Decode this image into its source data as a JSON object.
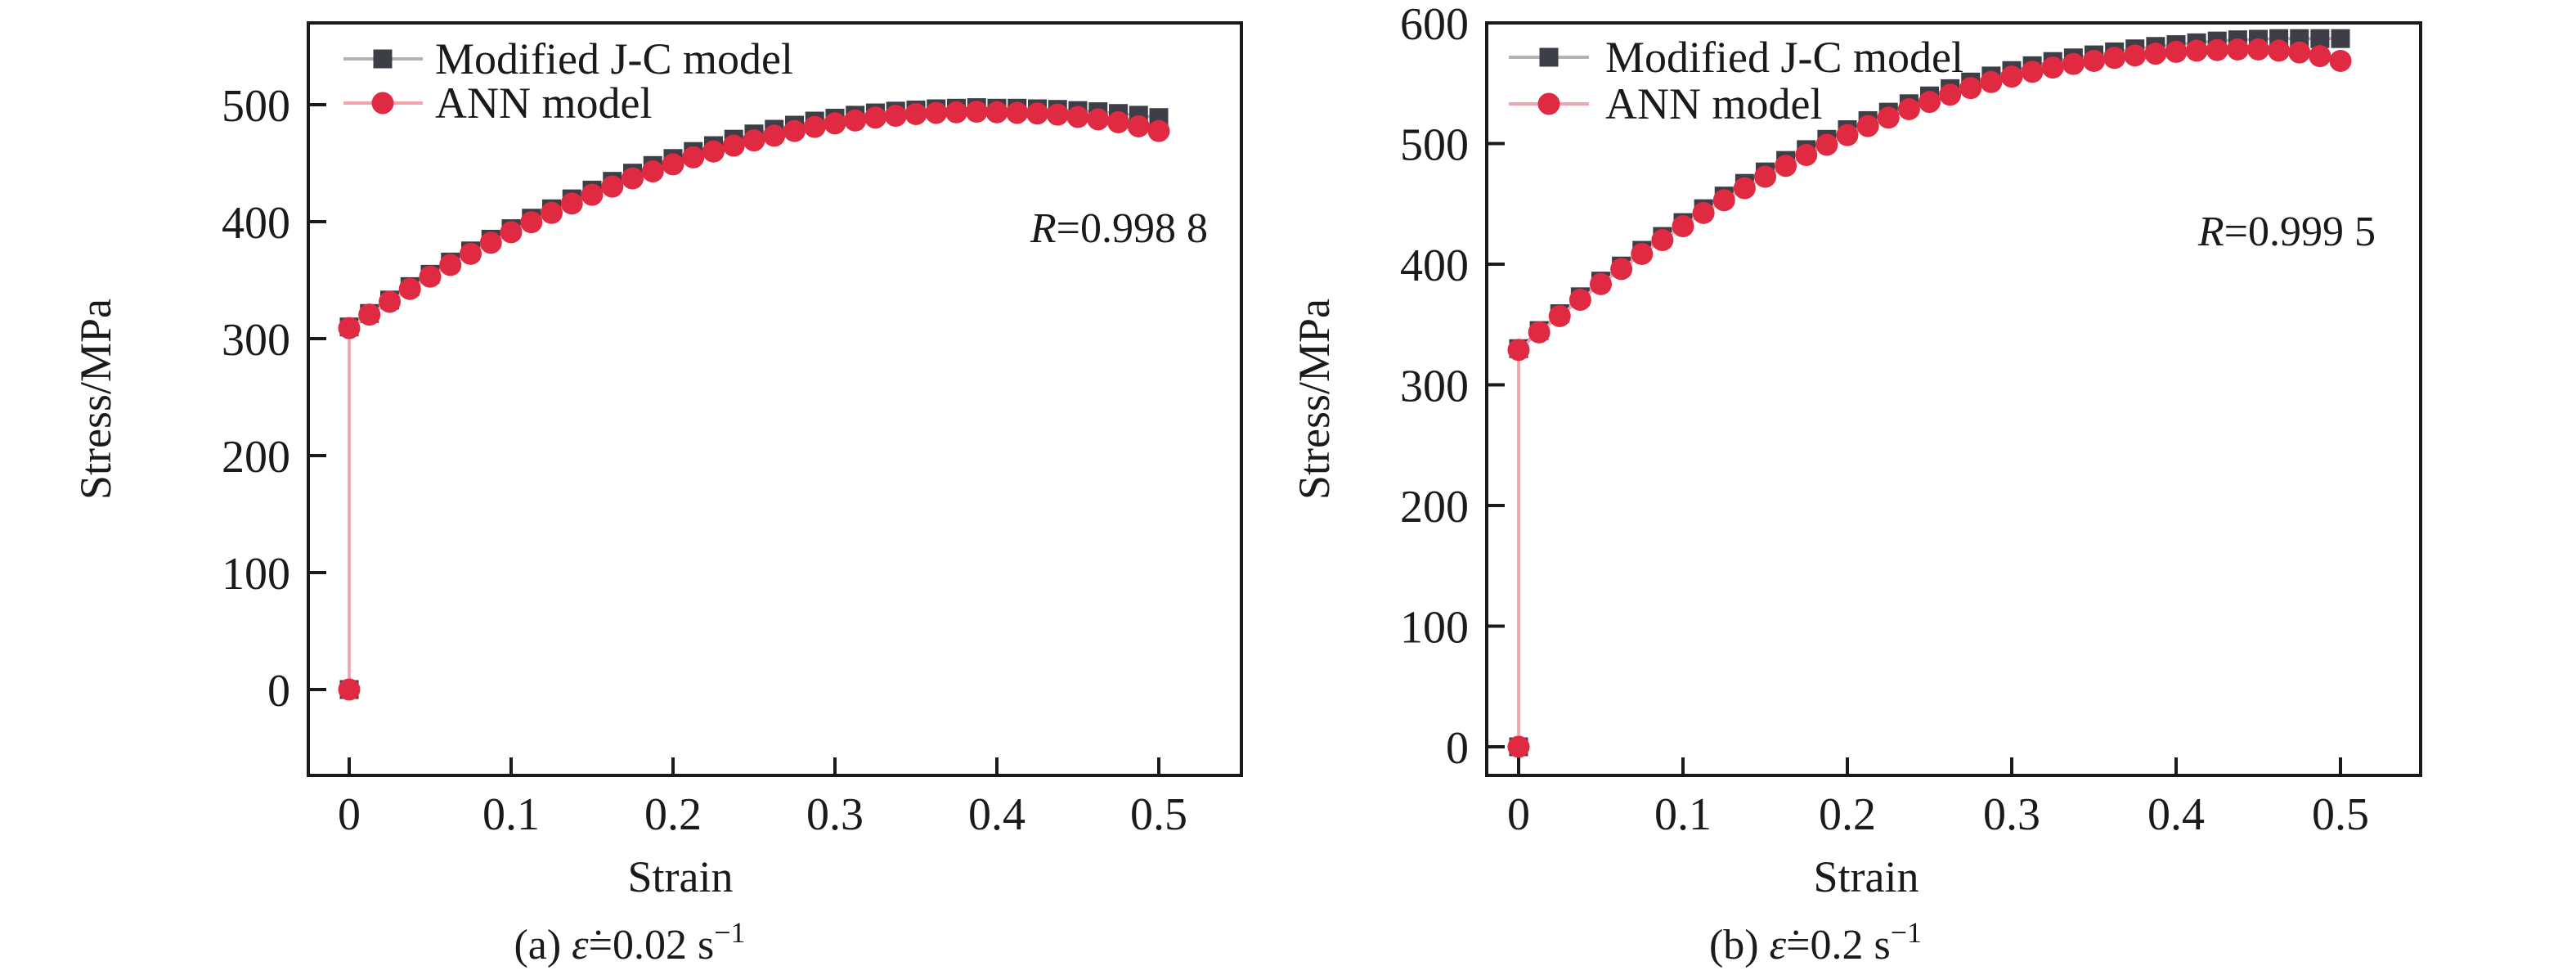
{
  "page": {
    "background": "#ffffff",
    "text_color": "#1a1a1a",
    "axis_color": "#1a1a1a"
  },
  "chart_data": [
    {
      "type": "line",
      "caption": {
        "prefix": "(a) ",
        "symbol": "ε̇",
        "value": "=0.02 s",
        "superscript": "−1"
      },
      "xlabel": "Strain",
      "ylabel": "Stress/MPa",
      "annotation": {
        "symbol": "R",
        "value": "=0.998 8"
      },
      "xlim": [
        -0.025,
        0.551
      ],
      "ylim": [
        -73,
        570
      ],
      "grid": false,
      "legend_position": "top-left",
      "x_tick_values": [
        0,
        0.1,
        0.2,
        0.3,
        0.4,
        0.5
      ],
      "x_tick_labels": [
        "0",
        "0.1",
        "0.2",
        "0.3",
        "0.4",
        "0.5"
      ],
      "y_tick_values": [
        0,
        100,
        200,
        300,
        400,
        500
      ],
      "y_tick_labels": [
        "0",
        "100",
        "200",
        "300",
        "400",
        "500"
      ],
      "series": [
        {
          "name": "Modified J-C model",
          "marker": "square",
          "marker_color": "#3e3e46",
          "line_color": "#b3b3b3",
          "points": [
            [
              0,
              0
            ],
            [
              0,
              310
            ],
            [
              0.0125,
              321.5
            ],
            [
              0.025,
              333
            ],
            [
              0.0375,
              344.5
            ],
            [
              0.05,
              355
            ],
            [
              0.0625,
              365.5
            ],
            [
              0.075,
              375
            ],
            [
              0.0875,
              385
            ],
            [
              0.1,
              394
            ],
            [
              0.1125,
              403
            ],
            [
              0.125,
              411
            ],
            [
              0.1375,
              419.5
            ],
            [
              0.15,
              427
            ],
            [
              0.1625,
              434.5
            ],
            [
              0.175,
              441.5
            ],
            [
              0.1875,
              448
            ],
            [
              0.2,
              454
            ],
            [
              0.2125,
              460
            ],
            [
              0.225,
              465
            ],
            [
              0.2375,
              470.5
            ],
            [
              0.25,
              475
            ],
            [
              0.2625,
              479
            ],
            [
              0.275,
              482.5
            ],
            [
              0.2875,
              486
            ],
            [
              0.3,
              488.5
            ],
            [
              0.3125,
              491
            ],
            [
              0.325,
              493
            ],
            [
              0.3375,
              494.5
            ],
            [
              0.35,
              495.5
            ],
            [
              0.3625,
              496.5
            ],
            [
              0.375,
              497
            ],
            [
              0.3875,
              497.5
            ],
            [
              0.4,
              497
            ],
            [
              0.4125,
              497
            ],
            [
              0.425,
              496.5
            ],
            [
              0.4375,
              496
            ],
            [
              0.45,
              495
            ],
            [
              0.4625,
              494
            ],
            [
              0.475,
              492.5
            ],
            [
              0.4875,
              491
            ],
            [
              0.5,
              489
            ]
          ]
        },
        {
          "name": "ANN model",
          "marker": "circle",
          "marker_color": "#e02a42",
          "line_color": "#f2a3ad",
          "points": [
            [
              0,
              0
            ],
            [
              0,
              309
            ],
            [
              0.0125,
              320.5
            ],
            [
              0.025,
              331.5
            ],
            [
              0.0375,
              342.5
            ],
            [
              0.05,
              353
            ],
            [
              0.0625,
              363
            ],
            [
              0.075,
              372.5
            ],
            [
              0.0875,
              382
            ],
            [
              0.1,
              391
            ],
            [
              0.1125,
              399.5
            ],
            [
              0.125,
              407.5
            ],
            [
              0.1375,
              415.5
            ],
            [
              0.15,
              423
            ],
            [
              0.1625,
              430
            ],
            [
              0.175,
              437
            ],
            [
              0.1875,
              443
            ],
            [
              0.2,
              449
            ],
            [
              0.2125,
              455
            ],
            [
              0.225,
              460
            ],
            [
              0.2375,
              465
            ],
            [
              0.25,
              469.5
            ],
            [
              0.2625,
              473.5
            ],
            [
              0.275,
              477.5
            ],
            [
              0.2875,
              481
            ],
            [
              0.3,
              484
            ],
            [
              0.3125,
              486.5
            ],
            [
              0.325,
              489
            ],
            [
              0.3375,
              490.5
            ],
            [
              0.35,
              492
            ],
            [
              0.3625,
              493
            ],
            [
              0.375,
              493.5
            ],
            [
              0.3875,
              494
            ],
            [
              0.4,
              493.5
            ],
            [
              0.4125,
              493
            ],
            [
              0.425,
              492.5
            ],
            [
              0.4375,
              491.5
            ],
            [
              0.45,
              489.5
            ],
            [
              0.4625,
              487.5
            ],
            [
              0.475,
              485
            ],
            [
              0.4875,
              481.5
            ],
            [
              0.5,
              477.5
            ]
          ]
        }
      ]
    },
    {
      "type": "line",
      "caption": {
        "prefix": "(b) ",
        "symbol": "ε̇",
        "value": "=0.2 s",
        "superscript": "−1"
      },
      "xlabel": "Strain",
      "ylabel": "Stress/MPa",
      "annotation": {
        "symbol": "R",
        "value": "=0.999 5"
      },
      "xlim": [
        -0.019,
        0.549
      ],
      "ylim": [
        -24,
        600
      ],
      "grid": false,
      "legend_position": "top-left",
      "x_tick_values": [
        0,
        0.1,
        0.2,
        0.3,
        0.4,
        0.5
      ],
      "x_tick_labels": [
        "0",
        "0.1",
        "0.2",
        "0.3",
        "0.4",
        "0.5"
      ],
      "y_tick_values": [
        0,
        100,
        200,
        300,
        400,
        500,
        600
      ],
      "y_tick_labels": [
        "0",
        "100",
        "200",
        "300",
        "400",
        "500",
        "600"
      ],
      "series": [
        {
          "name": "Modified J-C model",
          "marker": "square",
          "marker_color": "#3e3e46",
          "line_color": "#b3b3b3",
          "points": [
            [
              0,
              0
            ],
            [
              0,
              330
            ],
            [
              0.0125,
              345
            ],
            [
              0.025,
              359
            ],
            [
              0.0375,
              373
            ],
            [
              0.05,
              386
            ],
            [
              0.0625,
              398.5
            ],
            [
              0.075,
              411.5
            ],
            [
              0.0875,
              423
            ],
            [
              0.1,
              434.5
            ],
            [
              0.1125,
              446
            ],
            [
              0.125,
              456.5
            ],
            [
              0.1375,
              467
            ],
            [
              0.15,
              476.5
            ],
            [
              0.1625,
              486
            ],
            [
              0.175,
              495
            ],
            [
              0.1875,
              503.5
            ],
            [
              0.2,
              511.5
            ],
            [
              0.2125,
              519
            ],
            [
              0.225,
              526
            ],
            [
              0.2375,
              533
            ],
            [
              0.25,
              539.5
            ],
            [
              0.2625,
              545.5
            ],
            [
              0.275,
              551
            ],
            [
              0.2875,
              556
            ],
            [
              0.3,
              560.5
            ],
            [
              0.3125,
              564.5
            ],
            [
              0.325,
              568
            ],
            [
              0.3375,
              571
            ],
            [
              0.35,
              573.5
            ],
            [
              0.3625,
              576
            ],
            [
              0.375,
              578.5
            ],
            [
              0.3875,
              580.5
            ],
            [
              0.4,
              582
            ],
            [
              0.4125,
              583.5
            ],
            [
              0.425,
              585
            ],
            [
              0.4375,
              586
            ],
            [
              0.45,
              586.5
            ],
            [
              0.4625,
              587
            ],
            [
              0.475,
              587
            ],
            [
              0.4875,
              587
            ],
            [
              0.5,
              587
            ]
          ]
        },
        {
          "name": "ANN model",
          "marker": "circle",
          "marker_color": "#e02a42",
          "line_color": "#f2a3ad",
          "points": [
            [
              0,
              0
            ],
            [
              0,
              329
            ],
            [
              0.0125,
              343.5
            ],
            [
              0.025,
              357
            ],
            [
              0.0375,
              370.5
            ],
            [
              0.05,
              383.5
            ],
            [
              0.0625,
              396
            ],
            [
              0.075,
              408.5
            ],
            [
              0.0875,
              420
            ],
            [
              0.1,
              431.5
            ],
            [
              0.1125,
              442.5
            ],
            [
              0.125,
              453
            ],
            [
              0.1375,
              463
            ],
            [
              0.15,
              472.5
            ],
            [
              0.1625,
              481.5
            ],
            [
              0.175,
              490.5
            ],
            [
              0.1875,
              499
            ],
            [
              0.2,
              507
            ],
            [
              0.2125,
              514.5
            ],
            [
              0.225,
              521.5
            ],
            [
              0.2375,
              528.5
            ],
            [
              0.25,
              534.5
            ],
            [
              0.2625,
              540.5
            ],
            [
              0.275,
              546
            ],
            [
              0.2875,
              551
            ],
            [
              0.3,
              555.5
            ],
            [
              0.3125,
              559.5
            ],
            [
              0.325,
              563
            ],
            [
              0.3375,
              566
            ],
            [
              0.35,
              568.5
            ],
            [
              0.3625,
              571
            ],
            [
              0.375,
              573
            ],
            [
              0.3875,
              574.5
            ],
            [
              0.4,
              576
            ],
            [
              0.4125,
              577
            ],
            [
              0.425,
              577.5
            ],
            [
              0.4375,
              578
            ],
            [
              0.45,
              578
            ],
            [
              0.4625,
              577
            ],
            [
              0.475,
              575.5
            ],
            [
              0.4875,
              572.5
            ],
            [
              0.5,
              568.5
            ]
          ]
        }
      ]
    }
  ]
}
